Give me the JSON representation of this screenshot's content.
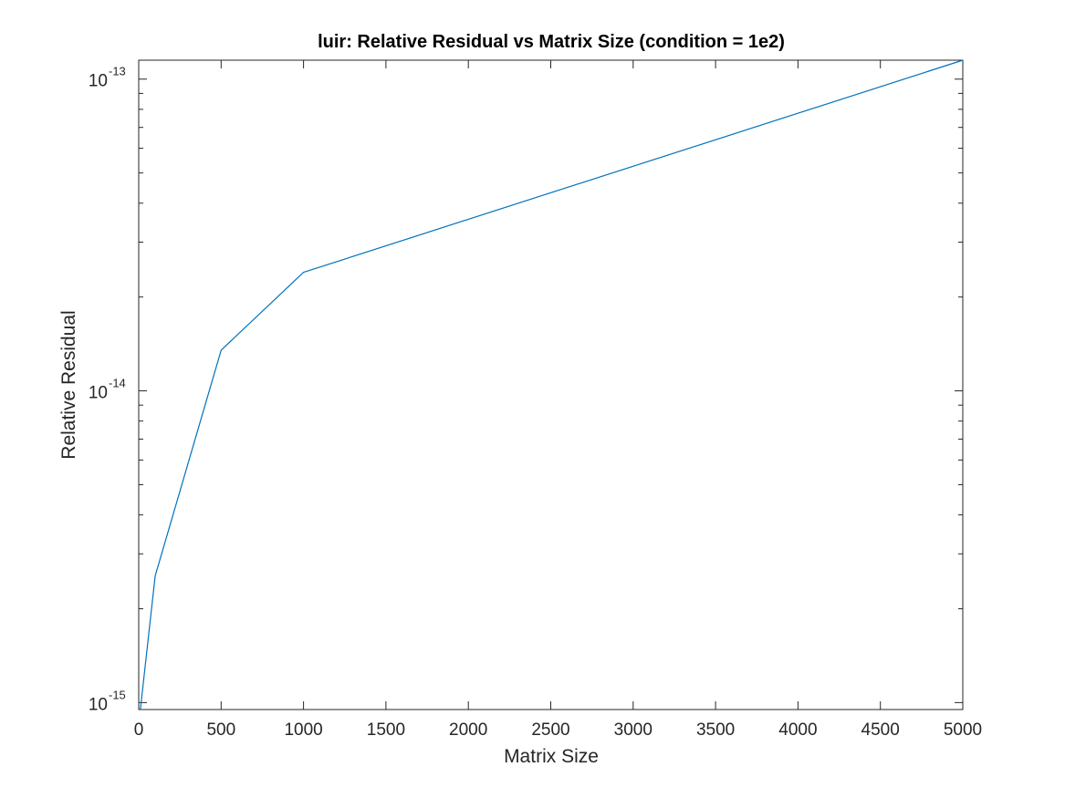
{
  "chart_data": {
    "type": "line",
    "title": "luir: Relative Residual vs Matrix Size (condition = 1e2)",
    "xlabel": "Matrix Size",
    "ylabel": "Relative Residual",
    "xscale": "linear",
    "yscale": "log",
    "xlim": [
      0,
      5000
    ],
    "ylim": [
      9.5e-16,
      1.15e-13
    ],
    "x_ticks": [
      0,
      500,
      1000,
      1500,
      2000,
      2500,
      3000,
      3500,
      4000,
      4500,
      5000
    ],
    "y_ticks": [
      {
        "value": 1e-15,
        "base": "10",
        "exponent": "-15"
      },
      {
        "value": 1e-14,
        "base": "10",
        "exponent": "-14"
      },
      {
        "value": 1e-13,
        "base": "10",
        "exponent": "-13"
      }
    ],
    "grid": false,
    "box": true,
    "series": [
      {
        "color": "#0072BD",
        "x": [
          10,
          100,
          500,
          1000,
          5000
        ],
        "y": [
          9.5e-16,
          2.55e-15,
          1.35e-14,
          2.4e-14,
          1.15e-13
        ]
      }
    ]
  }
}
